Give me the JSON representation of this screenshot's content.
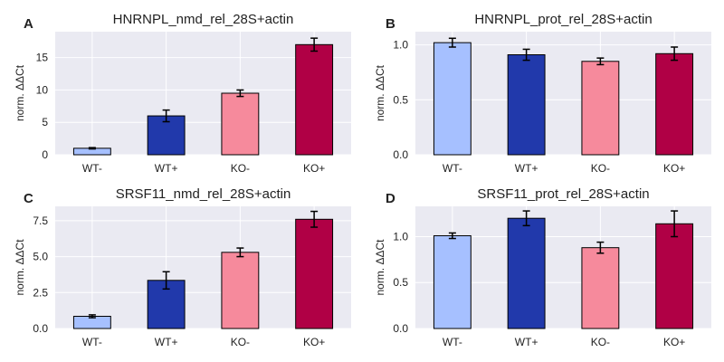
{
  "chart_data": [
    {
      "panel_label": "A",
      "type": "bar",
      "title": "HNRNPL_nmd_rel_28S+actin",
      "xlabel": "",
      "ylabel": "norm. ΔΔCt",
      "categories": [
        "WT-",
        "WT+",
        "KO-",
        "KO+"
      ],
      "values": [
        1.0,
        6.0,
        9.5,
        17.0
      ],
      "errors": [
        0.1,
        0.9,
        0.5,
        1.0
      ],
      "ylim": [
        0,
        19.0
      ],
      "yticks": [
        0,
        5,
        10,
        15
      ],
      "yticklabels": [
        "0",
        "5",
        "10",
        "15"
      ],
      "colors": [
        "#a6c0ff",
        "#2139ab",
        "#f68a9c",
        "#b00045"
      ],
      "grid": true
    },
    {
      "panel_label": "B",
      "type": "bar",
      "title": "HNRNPL_prot_rel_28S+actin",
      "xlabel": "",
      "ylabel": "norm. ΔΔCt",
      "categories": [
        "WT-",
        "WT+",
        "KO-",
        "KO+"
      ],
      "values": [
        1.02,
        0.91,
        0.85,
        0.92
      ],
      "errors": [
        0.04,
        0.05,
        0.03,
        0.06
      ],
      "ylim": [
        0,
        1.12
      ],
      "yticks": [
        0,
        0.5,
        1.0
      ],
      "yticklabels": [
        "0.0",
        "0.5",
        "1.0"
      ],
      "colors": [
        "#a6c0ff",
        "#2139ab",
        "#f68a9c",
        "#b00045"
      ],
      "grid": true
    },
    {
      "panel_label": "C",
      "type": "bar",
      "title": "SRSF11_nmd_rel_28S+actin",
      "xlabel": "",
      "ylabel": "norm. ΔΔCt",
      "categories": [
        "WT-",
        "WT+",
        "KO-",
        "KO+"
      ],
      "values": [
        0.85,
        3.35,
        5.3,
        7.6
      ],
      "errors": [
        0.1,
        0.6,
        0.3,
        0.55
      ],
      "ylim": [
        0,
        8.5
      ],
      "yticks": [
        0,
        2.5,
        5.0,
        7.5
      ],
      "yticklabels": [
        "0.0",
        "2.5",
        "5.0",
        "7.5"
      ],
      "colors": [
        "#a6c0ff",
        "#2139ab",
        "#f68a9c",
        "#b00045"
      ],
      "grid": true
    },
    {
      "panel_label": "D",
      "type": "bar",
      "title": "SRSF11_prot_rel_28S+actin",
      "xlabel": "",
      "ylabel": "norm. ΔΔCt",
      "categories": [
        "WT-",
        "WT+",
        "KO-",
        "KO+"
      ],
      "values": [
        1.01,
        1.2,
        0.88,
        1.14
      ],
      "errors": [
        0.03,
        0.08,
        0.06,
        0.14
      ],
      "ylim": [
        0,
        1.33
      ],
      "yticks": [
        0,
        0.5,
        1.0
      ],
      "yticklabels": [
        "0.0",
        "0.5",
        "1.0"
      ],
      "colors": [
        "#a6c0ff",
        "#2139ab",
        "#f68a9c",
        "#b00045"
      ],
      "grid": true
    }
  ]
}
